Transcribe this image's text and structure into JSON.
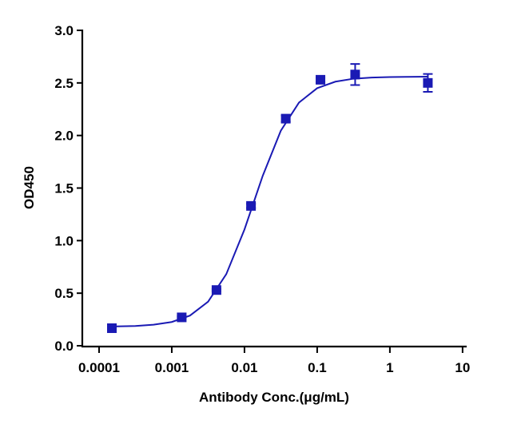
{
  "chart_data": {
    "type": "scatter",
    "xlabel": "Antibody Conc.(μg/mL)",
    "ylabel": "OD450",
    "xscale": "log",
    "xlim": [
      5.88e-05,
      11.1
    ],
    "xticks": [
      0.0001,
      0.001,
      0.01,
      0.1,
      1,
      10
    ],
    "ylim": [
      0,
      3
    ],
    "yticks": [
      {
        "value": 0,
        "label": "0.0"
      },
      {
        "value": 0.5,
        "label": "0.5"
      },
      {
        "value": 1,
        "label": "1.0"
      },
      {
        "value": 1.5,
        "label": "1.5"
      },
      {
        "value": 2,
        "label": "2.0"
      },
      {
        "value": 2.5,
        "label": "2.5"
      },
      {
        "value": 3,
        "label": "3.0"
      }
    ],
    "color": "#1a1ab4",
    "x": [
      0.00015,
      0.00137,
      0.00412,
      0.0123,
      0.037,
      0.111,
      0.333,
      3.33
    ],
    "values": [
      0.167,
      0.27,
      0.53,
      1.33,
      2.16,
      2.53,
      2.58,
      2.5
    ],
    "errors": [
      0.01,
      0.01,
      0.01,
      0.02,
      0.03,
      0.02,
      0.1,
      0.085
    ],
    "curve": {
      "x": [
        0.00015,
        0.000316,
        0.000562,
        0.001,
        0.00178,
        0.00316,
        0.00562,
        0.01,
        0.0178,
        0.0316,
        0.0562,
        0.1,
        0.178,
        0.316,
        0.562,
        1,
        1.78,
        3.33
      ],
      "values": [
        0.183,
        0.188,
        0.2,
        0.226,
        0.287,
        0.419,
        0.681,
        1.106,
        1.615,
        2.045,
        2.313,
        2.45,
        2.512,
        2.54,
        2.551,
        2.556,
        2.558,
        2.559
      ]
    }
  }
}
